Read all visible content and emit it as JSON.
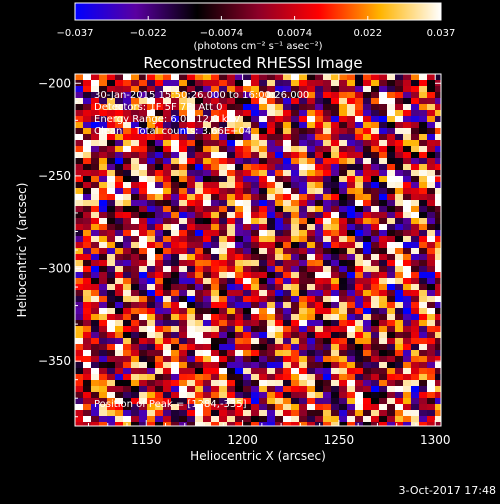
{
  "title": "Reconstructed RHESSI Image",
  "colorbar": {
    "ticks": [
      "−0.037",
      "−0.022",
      "−0.0074",
      "0.0074",
      "0.022",
      "0.037"
    ],
    "unit_label": "(photons cm⁻² s⁻¹ asec⁻²)",
    "range": [
      -0.037,
      0.037
    ],
    "colormap": [
      "#0000ff",
      "#5a00a0",
      "#000000",
      "#8c0028",
      "#ff0000",
      "#ffb400",
      "#ffffff"
    ]
  },
  "annotations": {
    "line1": "30-Jan-2015 15:50:26.000 to 16:00:26.000",
    "line2": "Detectors: 1F 5F 7F, Att 0",
    "line3": "Energy Range: 6.0 - 12.0 keV",
    "line4": "Clean    Total counts: 3.66E+04",
    "peak": "Position of Peak = [1284,-335]"
  },
  "footer": {
    "timestamp": "3-Oct-2017 17:48"
  },
  "chart_data": {
    "type": "heatmap",
    "title": "Reconstructed RHESSI Image",
    "xlabel": "Heliocentric X (arcsec)",
    "ylabel": "Heliocentric Y (arcsec)",
    "xlim": [
      1113,
      1303
    ],
    "ylim": [
      -385,
      -195
    ],
    "x_ticks": [
      1150,
      1200,
      1250,
      1300
    ],
    "x_tick_labels": [
      "1150",
      "1200",
      "1250",
      "1300"
    ],
    "y_ticks": [
      -200,
      -250,
      -300,
      -350
    ],
    "y_tick_labels": [
      "−200",
      "−250",
      "−300",
      "−350"
    ],
    "value_range": [
      -0.037,
      0.037
    ],
    "peak_position": [
      1284,
      -335
    ],
    "pattern": "diagonal fringe pattern of positive/negative intensity"
  }
}
